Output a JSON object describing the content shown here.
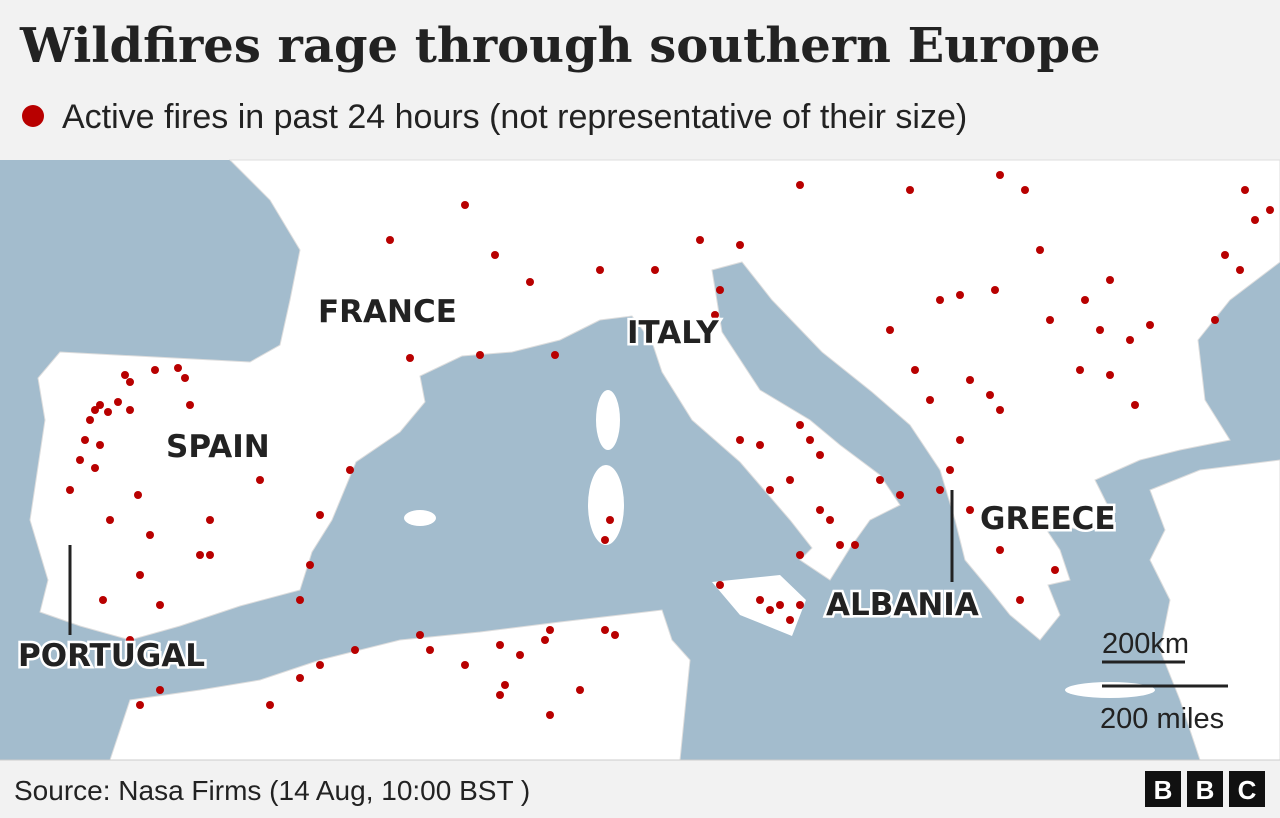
{
  "header": {
    "title": "Wildfires rage through southern Europe",
    "legend": "Active fires in past 24 hours (not representative of their size)"
  },
  "map": {
    "labels": [
      "FRANCE",
      "ITALY",
      "SPAIN",
      "PORTUGAL",
      "ALBANIA",
      "GREECE"
    ],
    "scale": {
      "km": "200km",
      "miles": "200 miles"
    }
  },
  "footer": {
    "source": "Source: Nasa Firms (14 Aug, 10:00 BST )",
    "logo": [
      "B",
      "B",
      "C"
    ]
  }
}
